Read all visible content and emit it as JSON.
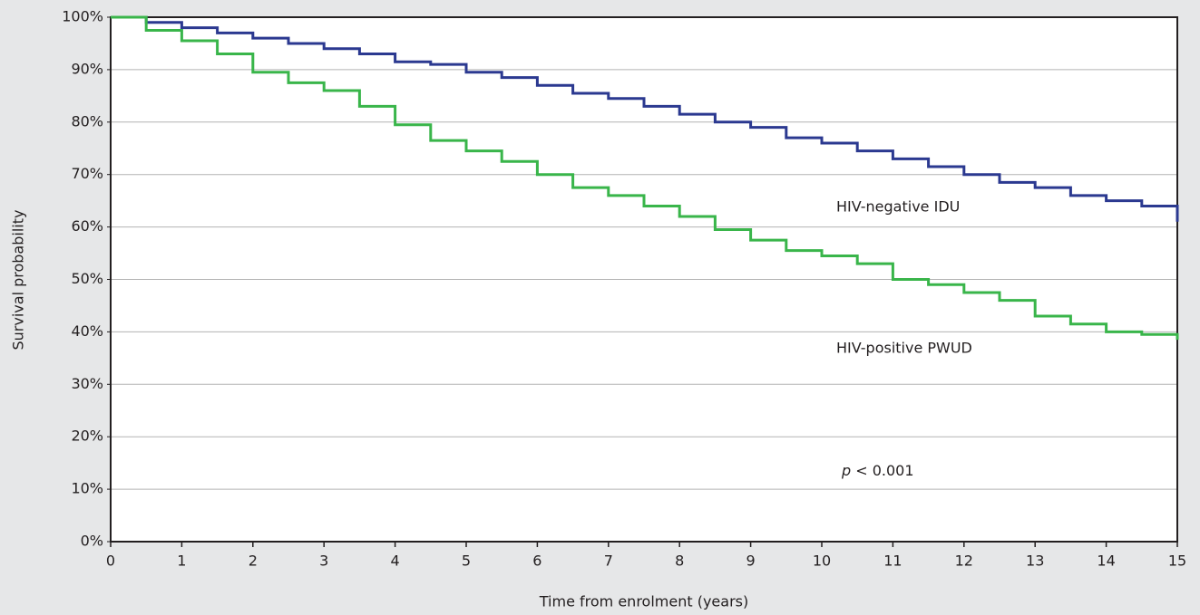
{
  "chart_data": {
    "type": "line",
    "drawstyle": "steps-post",
    "ylabel": "Survival probability",
    "xlabel": "Time from enrolment (years)",
    "x": [
      0,
      0.5,
      1,
      1.5,
      2,
      2.5,
      3,
      3.5,
      4,
      4.5,
      5,
      5.5,
      6,
      6.5,
      7,
      7.5,
      8,
      8.5,
      9,
      9.5,
      10,
      10.5,
      11,
      11.5,
      12,
      12.5,
      13,
      13.5,
      14,
      14.5,
      15
    ],
    "series": [
      {
        "name": "HIV-negative IDU",
        "color": "#2b3990",
        "values": [
          100,
          99,
          98,
          97,
          96,
          95,
          94,
          93,
          91.5,
          91,
          89.5,
          88.5,
          87,
          85.5,
          84.5,
          83,
          81.5,
          80,
          79,
          77,
          76,
          74.5,
          73,
          71.5,
          70,
          68.5,
          67.5,
          66,
          65,
          64,
          61
        ]
      },
      {
        "name": "HIV-positive PWUD",
        "color": "#39b54a",
        "values": [
          100,
          97.5,
          95.5,
          93,
          89.5,
          87.5,
          86,
          83,
          79.5,
          76.5,
          74.5,
          72.5,
          70,
          67.5,
          66,
          64,
          62,
          59.5,
          57.5,
          55.5,
          54.5,
          53,
          50,
          49,
          47.5,
          46,
          43,
          41.5,
          40,
          39.5,
          38.5
        ]
      }
    ],
    "annotation": "p < 0.001",
    "xlim": [
      0,
      15
    ],
    "xticks": [
      0,
      1,
      2,
      3,
      4,
      5,
      6,
      7,
      8,
      9,
      10,
      11,
      12,
      13,
      14,
      15
    ],
    "ylim": [
      0,
      100
    ],
    "yticks": [
      {
        "value": 0,
        "label": "0%"
      },
      {
        "value": 10,
        "label": "10%"
      },
      {
        "value": 20,
        "label": "20%"
      },
      {
        "value": 30,
        "label": "30%"
      },
      {
        "value": 40,
        "label": "40%"
      },
      {
        "value": 50,
        "label": "50%"
      },
      {
        "value": 60,
        "label": "60%"
      },
      {
        "value": 70,
        "label": "70%"
      },
      {
        "value": 80,
        "label": "80%"
      },
      {
        "value": 90,
        "label": "90%"
      },
      {
        "value": 100,
        "label": "100%"
      }
    ],
    "grid": true
  }
}
